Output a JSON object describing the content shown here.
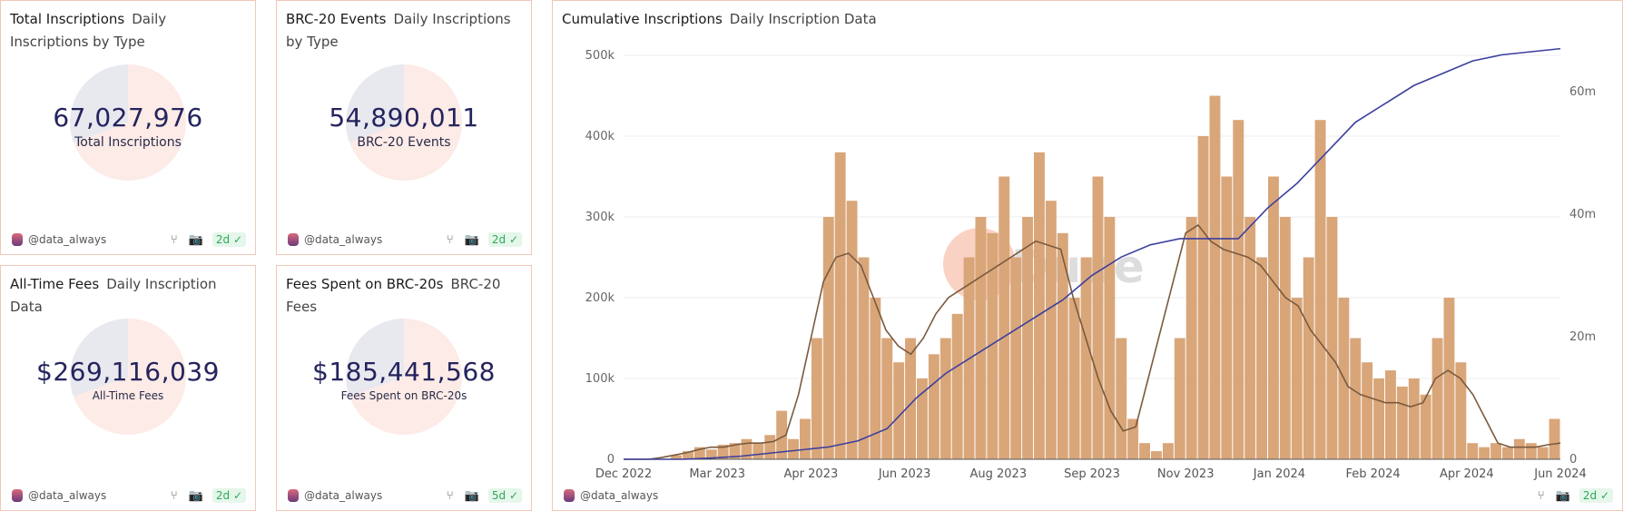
{
  "cards": [
    {
      "title": "Total Inscriptions",
      "subtitle": "Daily Inscriptions by Type",
      "value": "67,027,976",
      "label": "Total Inscriptions",
      "author": "@data_always",
      "age": "2d"
    },
    {
      "title": "BRC-20 Events",
      "subtitle": "Daily Inscriptions by Type",
      "value": "54,890,011",
      "label": "BRC-20 Events",
      "author": "@data_always",
      "age": "2d"
    },
    {
      "title": "All-Time Fees",
      "subtitle": "Daily Inscription Data",
      "value": "$269,116,039",
      "label": "All-Time Fees",
      "author": "@data_always",
      "age": "2d"
    },
    {
      "title": "Fees Spent on BRC-20s",
      "subtitle": "BRC-20 Fees",
      "value": "$185,441,568",
      "label": "Fees Spent on BRC-20s",
      "author": "@data_always",
      "age": "5d"
    }
  ],
  "chart": {
    "title": "Cumulative Inscriptions",
    "subtitle": "Daily Inscription Data",
    "author": "@data_always",
    "age": "2d",
    "watermark": "Dune"
  },
  "chart_data": {
    "type": "bar",
    "title": "Cumulative Inscriptions",
    "x_ticks": [
      "Dec 2022",
      "Mar 2023",
      "Apr 2023",
      "Jun 2023",
      "Aug 2023",
      "Sep 2023",
      "Nov 2023",
      "Jan 2024",
      "Feb 2024",
      "Apr 2024",
      "Jun 2024"
    ],
    "y_left": {
      "ticks": [
        "0",
        "100k",
        "200k",
        "300k",
        "400k",
        "500k"
      ],
      "range": [
        0,
        500000
      ]
    },
    "y_right": {
      "ticks": [
        "0",
        "20m",
        "40m",
        "60m"
      ],
      "range": [
        0,
        66500000
      ]
    },
    "colors": {
      "bars": "#d9a679",
      "ma": "#7a5a3e",
      "cumulative": "#3c3f9e"
    },
    "daily_inscriptions_k": [
      0,
      0,
      0,
      0,
      5,
      10,
      15,
      12,
      18,
      20,
      25,
      20,
      30,
      60,
      25,
      50,
      150,
      300,
      380,
      320,
      250,
      200,
      150,
      120,
      150,
      100,
      130,
      150,
      180,
      250,
      300,
      280,
      350,
      250,
      300,
      380,
      320,
      280,
      200,
      250,
      350,
      300,
      150,
      50,
      20,
      10,
      20,
      150,
      300,
      400,
      450,
      350,
      420,
      300,
      250,
      350,
      300,
      200,
      250,
      420,
      300,
      200,
      150,
      120,
      100,
      110,
      90,
      100,
      80,
      150,
      200,
      120,
      20,
      15,
      20,
      15,
      25,
      20,
      15,
      50
    ],
    "moving_average_k": [
      0,
      0,
      0,
      2,
      5,
      8,
      12,
      15,
      15,
      18,
      20,
      20,
      22,
      30,
      80,
      150,
      220,
      250,
      255,
      240,
      200,
      160,
      140,
      130,
      150,
      180,
      200,
      210,
      220,
      230,
      240,
      250,
      260,
      270,
      265,
      260,
      200,
      150,
      100,
      60,
      35,
      40,
      100,
      160,
      220,
      280,
      290,
      270,
      260,
      255,
      250,
      240,
      220,
      200,
      190,
      160,
      140,
      120,
      90,
      80,
      75,
      70,
      70,
      65,
      70,
      100,
      110,
      100,
      80,
      50,
      20,
      15,
      15,
      15,
      18,
      20
    ],
    "cumulative_m": [
      0,
      0,
      0,
      0.2,
      0.5,
      1,
      1.5,
      2,
      3,
      5,
      10,
      14,
      17,
      20,
      23,
      26,
      30,
      33,
      35,
      36,
      36,
      36,
      41,
      45,
      50,
      55,
      58,
      61,
      63,
      65,
      66,
      66.5,
      67
    ]
  }
}
